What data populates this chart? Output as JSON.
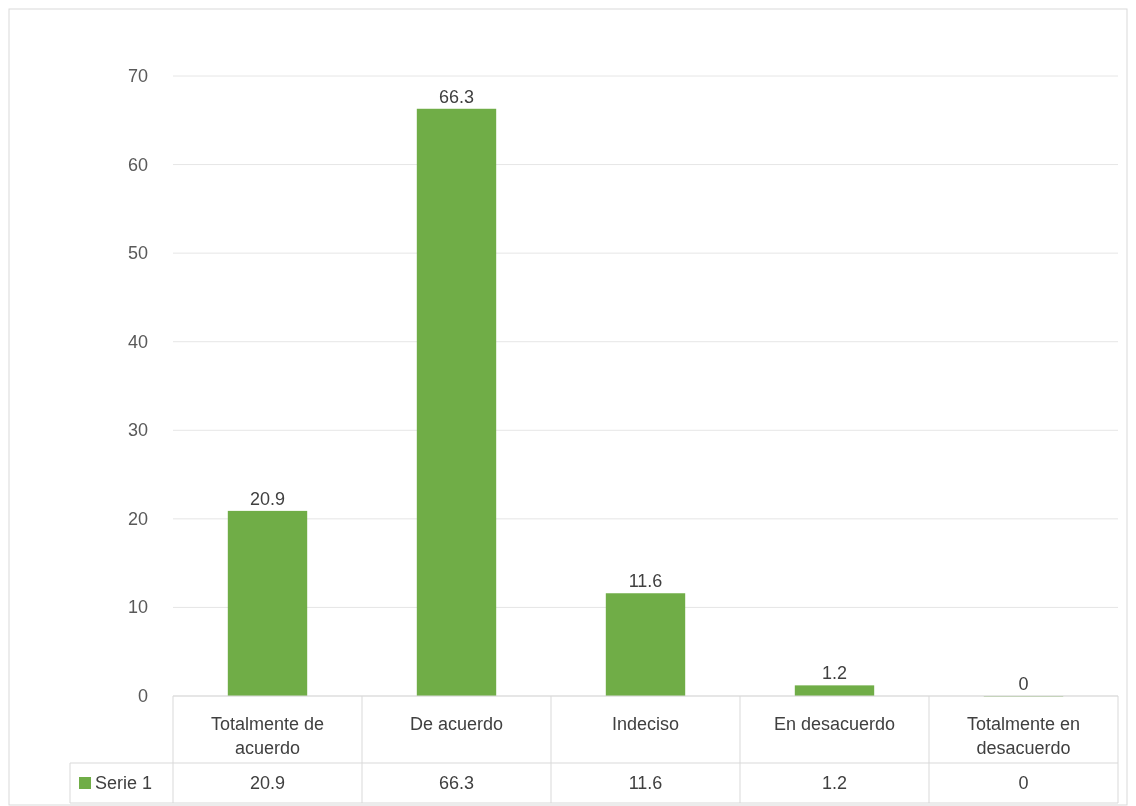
{
  "chart_data": {
    "type": "bar",
    "categories": [
      "Totalmente de acuerdo",
      "De acuerdo",
      "Indeciso",
      "En desacuerdo",
      "Totalmente en desacuerdo"
    ],
    "series": [
      {
        "name": "Serie 1",
        "color": "#70ad47",
        "values": [
          20.9,
          66.3,
          11.6,
          1.2,
          0
        ],
        "value_labels": [
          "20.9",
          "66.3",
          "11.6",
          "1.2",
          "0"
        ]
      }
    ],
    "ylim": [
      0,
      70
    ],
    "yticks": [
      0,
      10,
      20,
      30,
      40,
      50,
      60,
      70
    ],
    "grid": "y",
    "legend": "bottom",
    "annotations": [
      "20.9",
      "66.3",
      "11.6",
      "1.2",
      "0"
    ]
  }
}
